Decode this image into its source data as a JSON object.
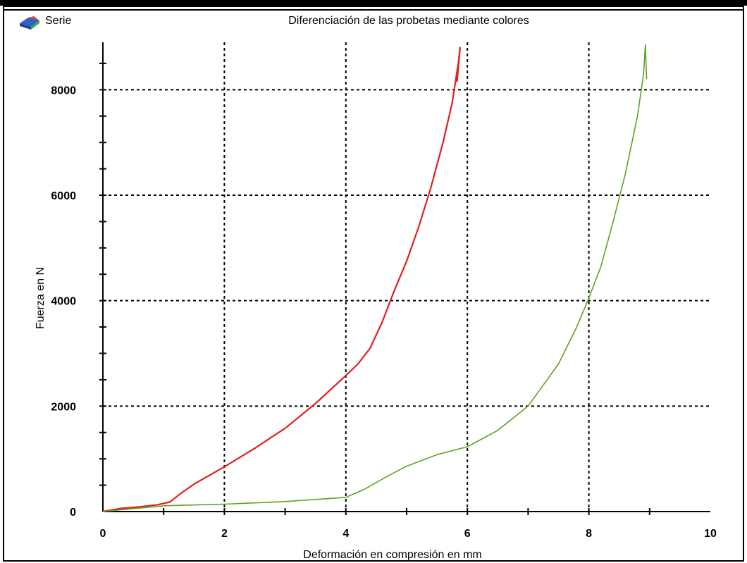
{
  "window": {
    "app_label": "Serie",
    "app_icon": "chart-app-icon"
  },
  "colors": {
    "series_red": "#e02020",
    "series_green": "#5fa01e",
    "grid": "#000000"
  },
  "chart_data": {
    "type": "line",
    "title": "Diferenciación de las probetas mediante colores",
    "xlabel": "Deformación en compresión en mm",
    "ylabel": "Fuerza en N",
    "xlim": [
      0,
      10
    ],
    "ylim": [
      0,
      8900
    ],
    "xticks": [
      "0",
      "2",
      "4",
      "6",
      "8",
      "10"
    ],
    "yticks": [
      "0",
      "2000",
      "4000",
      "6000",
      "8000"
    ],
    "grid": true,
    "series": [
      {
        "color": "#e02020",
        "x": [
          0,
          0.3,
          0.6,
          0.9,
          1.1,
          1.3,
          1.5,
          2.0,
          2.5,
          3.0,
          3.5,
          4.0,
          4.2,
          4.4,
          4.6,
          4.8,
          5.0,
          5.2,
          5.4,
          5.6,
          5.75,
          5.85,
          5.88,
          5.83
        ],
        "y": [
          0,
          60,
          90,
          130,
          180,
          360,
          520,
          850,
          1200,
          1580,
          2050,
          2580,
          2800,
          3100,
          3600,
          4200,
          4750,
          5400,
          6150,
          7000,
          7750,
          8500,
          8800,
          8150
        ]
      },
      {
        "color": "#5fa01e",
        "x": [
          0,
          1.0,
          2.0,
          3.0,
          4.0,
          4.3,
          4.7,
          5.0,
          5.5,
          6.0,
          6.5,
          7.0,
          7.5,
          7.8,
          8.0,
          8.2,
          8.4,
          8.6,
          8.8,
          8.9,
          8.93,
          8.95
        ],
        "y": [
          0,
          110,
          140,
          190,
          270,
          420,
          680,
          860,
          1080,
          1230,
          1540,
          2000,
          2800,
          3500,
          4050,
          4650,
          5500,
          6400,
          7500,
          8300,
          8850,
          8200
        ]
      }
    ]
  }
}
